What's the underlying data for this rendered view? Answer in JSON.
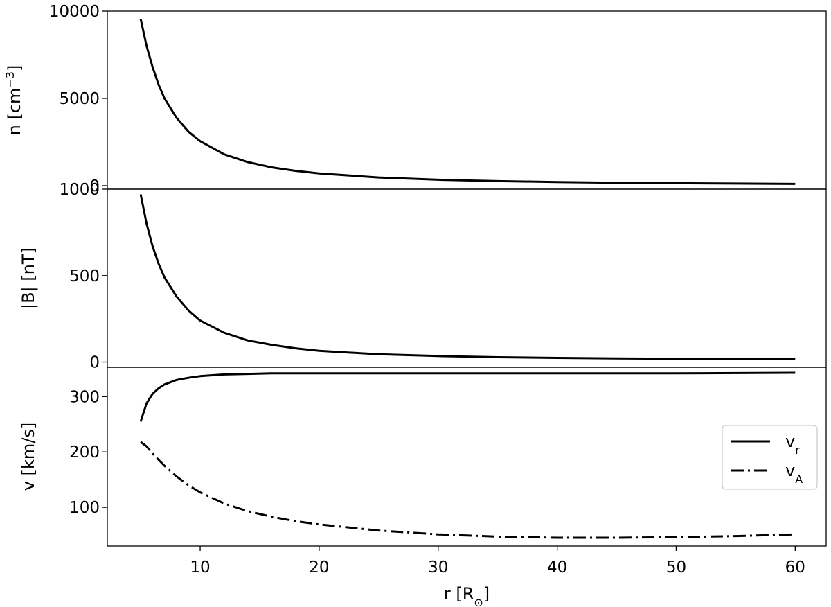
{
  "chart_data": [
    {
      "type": "line",
      "panel": "top",
      "ylabel": "n [cm$^{-3}$]",
      "ylabel_parts": {
        "base": "n [cm",
        "sup": "−3",
        "end": "]"
      },
      "xlim": [
        2.2,
        62.6
      ],
      "ylim": [
        -200,
        10000
      ],
      "yticks": [
        0,
        5000,
        10000
      ],
      "ytick_labels": [
        "0",
        "5000",
        "10000"
      ],
      "grid": false,
      "series": [
        {
          "style": "solid",
          "color": "#000000",
          "x": [
            5,
            5.5,
            6,
            6.5,
            7,
            8,
            9,
            10,
            12,
            14,
            16,
            18,
            20,
            25,
            30,
            35,
            40,
            45,
            50,
            55,
            60
          ],
          "y": [
            9550,
            8000,
            6800,
            5800,
            5000,
            3900,
            3100,
            2550,
            1800,
            1350,
            1050,
            850,
            700,
            470,
            340,
            260,
            210,
            170,
            140,
            120,
            100
          ]
        }
      ]
    },
    {
      "type": "line",
      "panel": "middle",
      "ylabel": "|B| [nT]",
      "xlim": [
        2.2,
        62.6
      ],
      "ylim": [
        -30,
        1000
      ],
      "yticks": [
        0,
        500,
        1000
      ],
      "ytick_labels": [
        "0",
        "500",
        "1000"
      ],
      "grid": false,
      "series": [
        {
          "style": "solid",
          "color": "#000000",
          "x": [
            5,
            5.5,
            6,
            6.5,
            7,
            8,
            9,
            10,
            12,
            14,
            16,
            18,
            20,
            25,
            30,
            35,
            40,
            45,
            50,
            55,
            60
          ],
          "y": [
            970,
            800,
            670,
            570,
            490,
            380,
            300,
            240,
            170,
            125,
            100,
            80,
            65,
            45,
            35,
            28,
            24,
            21,
            19,
            18,
            17
          ]
        }
      ]
    },
    {
      "type": "line",
      "panel": "bottom",
      "xlabel": "r [R$_\\odot$]",
      "xlabel_parts": {
        "base": "r [R",
        "sub": "⊙",
        "end": "]"
      },
      "ylabel": "v [km/s]",
      "xlim": [
        2.2,
        62.6
      ],
      "ylim": [
        30,
        353
      ],
      "xticks": [
        10,
        20,
        30,
        40,
        50,
        60
      ],
      "xtick_labels": [
        "10",
        "20",
        "30",
        "40",
        "50",
        "60"
      ],
      "yticks": [
        100,
        200,
        300
      ],
      "ytick_labels": [
        "100",
        "200",
        "300"
      ],
      "grid": false,
      "legend_placement": "right",
      "series": [
        {
          "name": "v$_r$",
          "legend": {
            "base": "v",
            "sub": "r"
          },
          "style": "solid",
          "color": "#000000",
          "x": [
            5,
            5.5,
            6,
            6.5,
            7,
            8,
            9,
            10,
            12,
            14,
            16,
            18,
            20,
            25,
            30,
            40,
            50,
            60
          ],
          "y": [
            255,
            288,
            305,
            315,
            322,
            330,
            334,
            337,
            340,
            341,
            342,
            342,
            342,
            342,
            342,
            342,
            342,
            343
          ]
        },
        {
          "name": "v$_A$",
          "legend": {
            "base": "v",
            "sub": "A"
          },
          "style": "dashdot",
          "color": "#000000",
          "x": [
            5,
            5.5,
            6,
            7,
            8,
            9,
            10,
            12,
            14,
            16,
            18,
            20,
            25,
            30,
            35,
            40,
            45,
            50,
            55,
            60
          ],
          "y": [
            218,
            210,
            197,
            175,
            156,
            140,
            127,
            107,
            93,
            83,
            75,
            69,
            58,
            51,
            47,
            45,
            45,
            46,
            48,
            51
          ]
        }
      ]
    }
  ]
}
